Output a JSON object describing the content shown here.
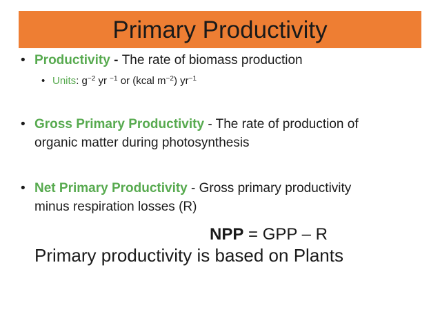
{
  "title": "Primary Productivity",
  "colors": {
    "title_bar": "#ee7e33",
    "term_green": "#57aa4f",
    "text": "#1a1a1a"
  },
  "bullets": {
    "productivity": {
      "term": "Productivity",
      "separator": " - ",
      "definition": "The rate of biomass production"
    },
    "units": {
      "label": "Units",
      "colon": ": ",
      "g": "g",
      "g_exp": "−2",
      "yr": " yr ",
      "yr_exp": "−1",
      "or_kcal": " or (kcal m",
      "m_exp": "−2",
      "close_yr": ") yr",
      "yr2_exp": "−1"
    },
    "gpp": {
      "term": "Gross Primary Productivity",
      "definition_line1": " - The rate of production of",
      "definition_line2": "organic matter during photosynthesis"
    },
    "npp": {
      "term": "Net Primary Productivity",
      "definition_line1": " - Gross primary productivity",
      "definition_line2": "minus respiration losses (R)"
    }
  },
  "equation": {
    "lhs": "NPP",
    "rhs": " = GPP – R"
  },
  "conclusion": "Primary productivity is based on Plants"
}
